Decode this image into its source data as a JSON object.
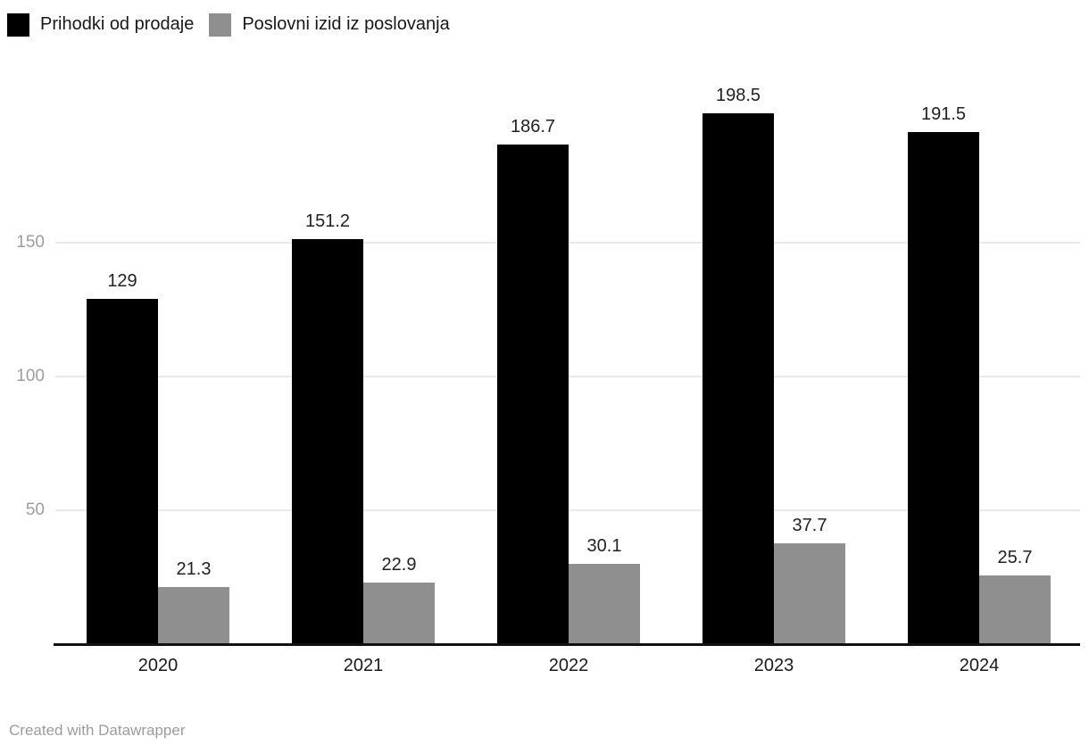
{
  "legend": {
    "items": [
      {
        "label": "Prihodki od prodaje",
        "color": "#000000"
      },
      {
        "label": "Poslovni izid iz poslovanja",
        "color": "#8f8f8f"
      }
    ]
  },
  "footer": {
    "credit": "Created with Datawrapper"
  },
  "colors": {
    "series1": "#000000",
    "series2": "#8f8f8f",
    "gridline": "#e9e9e9",
    "axis_line": "#111111",
    "ytick_label": "#9d9d9d",
    "value_label": "#222222",
    "category_label": "#1a1a1a",
    "credit_text": "#9c9c9c",
    "background": "#ffffff"
  },
  "chart_data": {
    "type": "bar",
    "title": "",
    "xlabel": "",
    "ylabel": "",
    "categories": [
      "2020",
      "2021",
      "2022",
      "2023",
      "2024"
    ],
    "series": [
      {
        "name": "Prihodki od prodaje",
        "color": "#000000",
        "values": [
          129,
          151.2,
          186.7,
          198.5,
          191.5
        ]
      },
      {
        "name": "Poslovni izid iz poslovanja",
        "color": "#8f8f8f",
        "values": [
          21.3,
          22.9,
          30.1,
          37.7,
          25.7
        ]
      }
    ],
    "yticks": [
      50,
      100,
      150
    ],
    "ylim": [
      0,
      200
    ],
    "grid": true,
    "grid_axis": "y",
    "value_labels": true,
    "legend_position": "top-left"
  }
}
